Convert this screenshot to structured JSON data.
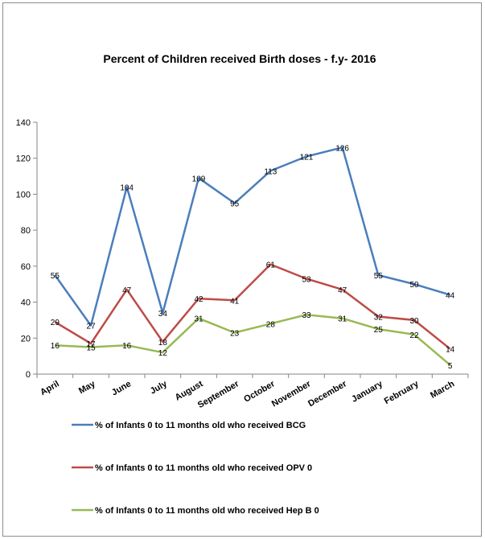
{
  "chart_data": {
    "type": "line",
    "title": "Percent of Children received Birth doses - f.y- 2016",
    "xlabel": "",
    "ylabel": "",
    "ylim": [
      0,
      140
    ],
    "yticks": [
      0,
      20,
      40,
      60,
      80,
      100,
      120,
      140
    ],
    "grid": false,
    "legend_position": "bottom",
    "categories": [
      "April",
      "May",
      "June",
      "July",
      "August",
      "September",
      "October",
      "November",
      "December",
      "January",
      "February",
      "March"
    ],
    "series": [
      {
        "name": "% of Infants 0 to 11 months old who received BCG",
        "color": "#4a7ebb",
        "values": [
          55,
          27,
          104,
          34,
          109,
          95,
          113,
          121,
          126,
          55,
          50,
          44
        ]
      },
      {
        "name": "% of Infants 0 to 11 months old who received OPV 0",
        "color": "#be4b48",
        "values": [
          29,
          17,
          47,
          18,
          42,
          41,
          61,
          53,
          47,
          32,
          30,
          14
        ]
      },
      {
        "name": "% of Infants 0 to 11 months old who received Hep B 0",
        "color": "#98b954",
        "values": [
          16,
          15,
          16,
          12,
          31,
          23,
          28,
          33,
          31,
          25,
          22,
          5
        ]
      }
    ]
  }
}
